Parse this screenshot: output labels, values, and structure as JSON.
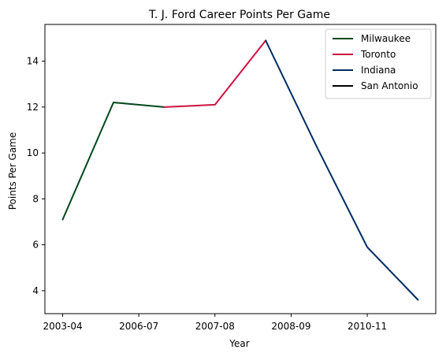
{
  "chart_data": {
    "type": "line",
    "title": "T. J. Ford Career Points Per Game",
    "xlabel": "Year",
    "ylabel": "Points Per Game",
    "x_tick_labels": [
      "2003-04",
      "2006-07",
      "2007-08",
      "2008-09",
      "2010-11"
    ],
    "x_tick_positions": [
      0,
      1.5,
      3,
      4.5,
      6
    ],
    "xlim": [
      -0.35,
      7.35
    ],
    "ylim": [
      3.0,
      15.6
    ],
    "y_ticks": [
      4,
      6,
      8,
      10,
      12,
      14
    ],
    "grid": false,
    "legend_position": "top-right",
    "series": [
      {
        "name": "Milwaukee",
        "color": "#00471B",
        "x": [
          0,
          1,
          2
        ],
        "y": [
          7.1,
          12.2,
          12.0
        ]
      },
      {
        "name": "Toronto",
        "color": "#CE1141",
        "x": [
          2,
          3,
          4
        ],
        "y": [
          12.0,
          12.1,
          14.9
        ]
      },
      {
        "name": "Indiana",
        "color": "#002D62",
        "x": [
          4,
          5,
          6,
          7
        ],
        "y": [
          14.9,
          10.3,
          5.9,
          3.6
        ]
      },
      {
        "name": "San Antonio",
        "color": "#000000",
        "x": [],
        "y": []
      }
    ]
  }
}
